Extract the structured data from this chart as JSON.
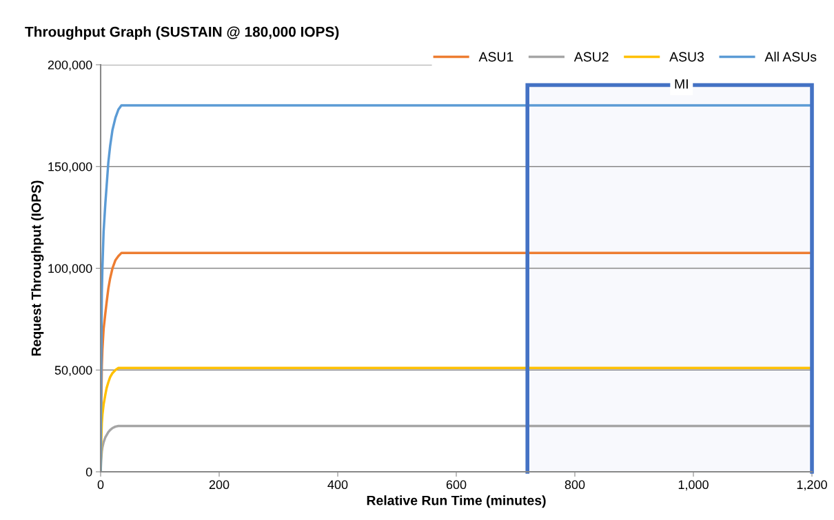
{
  "chart_data": {
    "type": "line",
    "title": "Throughput Graph (SUSTAIN @ 180,000 IOPS)",
    "xlabel": "Relative Run Time (minutes)",
    "ylabel": "Request Throughput (IOPS)",
    "x": [
      0,
      1,
      2,
      3,
      5,
      8,
      10,
      13,
      16,
      20,
      25,
      30,
      35,
      60,
      110,
      180,
      200,
      240,
      300,
      420,
      560,
      620,
      700,
      760,
      800,
      900,
      1000,
      1100,
      1200
    ],
    "series": [
      {
        "name": "ASU1",
        "color": "#ed7d31",
        "values": [
          0,
          30000,
          52000,
          60000,
          70000,
          78000,
          83000,
          90000,
          95000,
          100000,
          104000,
          106000,
          107500,
          107500,
          107500,
          107500,
          107500,
          107500,
          107500,
          107500,
          107500,
          107500,
          107500,
          107500,
          107500,
          107500,
          107500,
          107500,
          107500
        ]
      },
      {
        "name": "ASU2",
        "color": "#a5a5a5",
        "values": [
          0,
          6000,
          10000,
          12000,
          14500,
          17000,
          18000,
          19500,
          20500,
          21500,
          22200,
          22500,
          22500,
          22500,
          22500,
          22500,
          22500,
          22500,
          22500,
          22500,
          22500,
          22500,
          22500,
          22500,
          22500,
          22500,
          22500,
          22500,
          22500
        ]
      },
      {
        "name": "ASU3",
        "color": "#ffc000",
        "values": [
          0,
          15000,
          24000,
          28000,
          33000,
          38000,
          41000,
          44000,
          46500,
          48500,
          50000,
          51000,
          51000,
          51000,
          51000,
          51000,
          51000,
          51000,
          51000,
          51000,
          51000,
          51000,
          51000,
          51000,
          51000,
          51000,
          51000,
          51000,
          51000
        ]
      },
      {
        "name": "All ASUs",
        "color": "#5b9bd5",
        "values": [
          0,
          50000,
          88000,
          100000,
          118000,
          132000,
          140000,
          152000,
          160000,
          168000,
          174000,
          178000,
          180000,
          180000,
          180000,
          180000,
          180000,
          180000,
          180000,
          180000,
          180000,
          180000,
          180000,
          180000,
          180000,
          180000,
          180000,
          180000,
          180000
        ]
      }
    ],
    "xlim": [
      0,
      1200
    ],
    "xticks": [
      0,
      200,
      400,
      600,
      800,
      {
        "value": 1000,
        "label": "1,000"
      },
      {
        "value": 1200,
        "label": "1,200"
      }
    ],
    "ylim": [
      0,
      200000
    ],
    "yticks": [
      0,
      {
        "value": 50000,
        "label": "50,000"
      },
      {
        "value": 100000,
        "label": "100,000"
      },
      {
        "value": 150000,
        "label": "150,000"
      },
      {
        "value": 200000,
        "label": "200,000"
      }
    ],
    "bands": [
      {
        "axis": "x",
        "from": 720,
        "to": 1200,
        "label": "MI",
        "color": "#4472c4"
      }
    ],
    "grid": "y",
    "legend": "top right"
  }
}
